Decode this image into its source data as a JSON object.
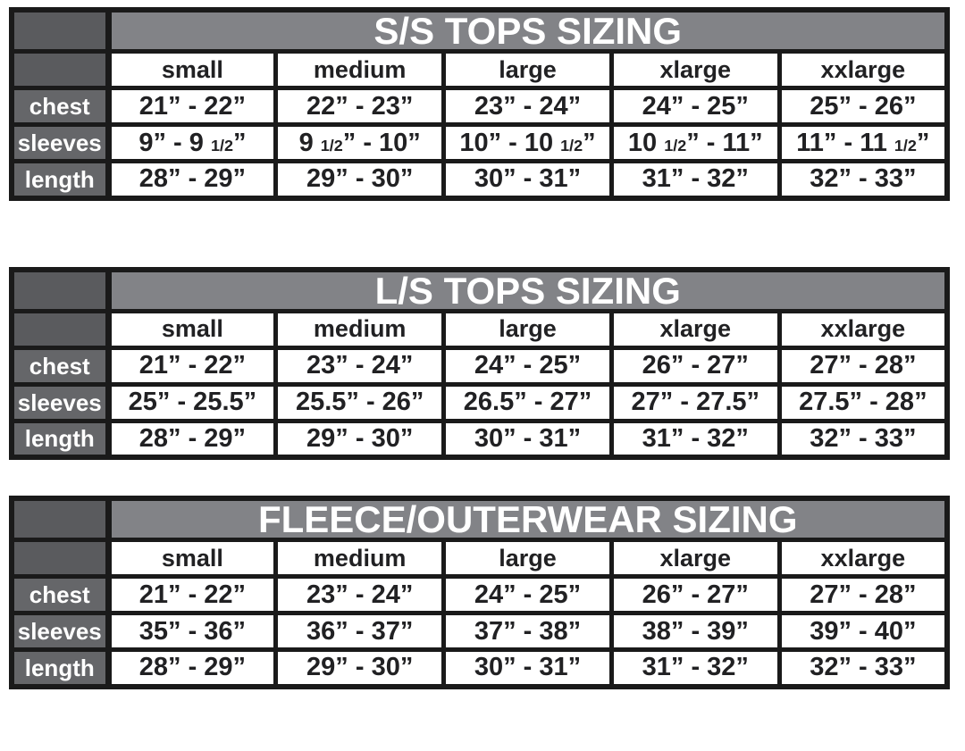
{
  "page": {
    "background": "#ffffff"
  },
  "colors": {
    "border": "#1a1a1a",
    "title_bar_bg": "#828387",
    "corner_bg": "#5a5b5e",
    "row_label_bg": "#656669",
    "cell_bg": "#ffffff",
    "cell_text": "#212123",
    "title_text": "#ffffff",
    "row_label_text": "#ffffff"
  },
  "chart_data": [
    {
      "type": "table",
      "id": "ss_tops",
      "title": "S/S TOPS SIZING",
      "columns": [
        "small",
        "medium",
        "large",
        "xlarge",
        "xxlarge"
      ],
      "rows": [
        {
          "label": "chest",
          "values": [
            "21” - 22”",
            "22” - 23”",
            "23” - 24”",
            "24” - 25”",
            "25” - 26”"
          ]
        },
        {
          "label": "sleeves",
          "values": [
            "9” - 9 1/2”",
            "9 1/2” - 10”",
            "10” - 10 1/2”",
            "10 1/2” - 11”",
            "11” - 11 1/2”"
          ]
        },
        {
          "label": "length",
          "values": [
            "28” - 29”",
            "29” - 30”",
            "30” - 31”",
            "31” - 32”",
            "32” - 33”"
          ]
        }
      ]
    },
    {
      "type": "table",
      "id": "ls_tops",
      "title": "L/S TOPS SIZING",
      "columns": [
        "small",
        "medium",
        "large",
        "xlarge",
        "xxlarge"
      ],
      "rows": [
        {
          "label": "chest",
          "values": [
            "21” - 22”",
            "23” - 24”",
            "24” - 25”",
            "26” - 27”",
            "27” - 28”"
          ]
        },
        {
          "label": "sleeves",
          "values": [
            "25” - 25.5”",
            "25.5” - 26”",
            "26.5” - 27”",
            "27” - 27.5”",
            "27.5” - 28”"
          ]
        },
        {
          "label": "length",
          "values": [
            "28” - 29”",
            "29” - 30”",
            "30” - 31”",
            "31” - 32”",
            "32” - 33”"
          ]
        }
      ]
    },
    {
      "type": "table",
      "id": "fleece_outerwear",
      "title": "FLEECE/OUTERWEAR SIZING",
      "columns": [
        "small",
        "medium",
        "large",
        "xlarge",
        "xxlarge"
      ],
      "rows": [
        {
          "label": "chest",
          "values": [
            "21” - 22”",
            "23” - 24”",
            "24” - 25”",
            "26” - 27”",
            "27” - 28”"
          ]
        },
        {
          "label": "sleeves",
          "values": [
            "35” - 36”",
            "36” - 37”",
            "37” - 38”",
            "38” - 39”",
            "39” - 40”"
          ]
        },
        {
          "label": "length",
          "values": [
            "28” - 29”",
            "29” - 30”",
            "30” - 31”",
            "31” - 32”",
            "32” - 33”"
          ]
        }
      ]
    }
  ]
}
